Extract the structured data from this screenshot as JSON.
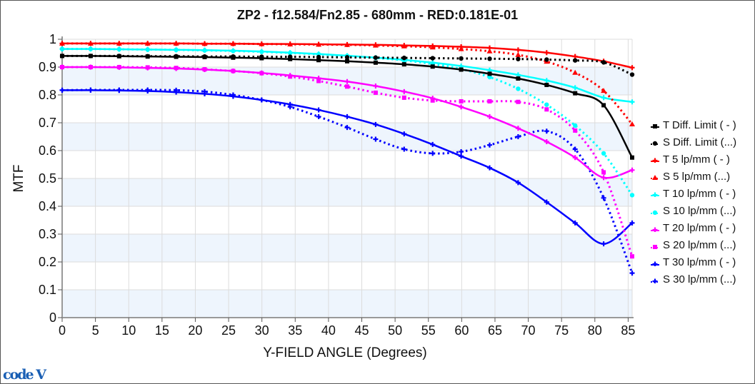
{
  "window": {
    "logo_text": "code V"
  },
  "chart_data": {
    "type": "line",
    "title": "ZP2 - f12.584/Fn2.85 - 680mm - RED:0.181E-01",
    "xlabel": "Y-FIELD ANGLE (Degrees)",
    "ylabel": "MTF",
    "xlim": [
      0,
      85.6
    ],
    "ylim": [
      0,
      1
    ],
    "xticks": [
      "0",
      "5",
      "10",
      "15",
      "20",
      "25",
      "30",
      "35",
      "40",
      "45",
      "50",
      "55",
      "60",
      "65",
      "70",
      "75",
      "80",
      "85"
    ],
    "yticks": [
      "0",
      "0.1",
      "0.2",
      "0.3",
      "0.4",
      "0.5",
      "0.6",
      "0.7",
      "0.8",
      "0.9",
      "1"
    ],
    "grid": true,
    "legend_position": "right",
    "x": [
      0,
      4.28,
      8.56,
      12.84,
      17.12,
      21.4,
      25.68,
      29.96,
      34.24,
      38.52,
      42.8,
      47.08,
      51.36,
      55.64,
      59.92,
      64.2,
      68.48,
      72.76,
      77.04,
      81.32,
      85.6
    ],
    "series": [
      {
        "name": "T Diff. Limit ( - )",
        "color": "#000000",
        "style": "solid",
        "marker": "square",
        "values": [
          0.94,
          0.94,
          0.939,
          0.938,
          0.937,
          0.936,
          0.934,
          0.932,
          0.929,
          0.925,
          0.921,
          0.916,
          0.91,
          0.902,
          0.891,
          0.876,
          0.859,
          0.836,
          0.806,
          0.763,
          0.575
        ]
      },
      {
        "name": "S Diff. Limit (...)",
        "color": "#000000",
        "style": "dotted",
        "marker": "circle",
        "values": [
          0.94,
          0.94,
          0.94,
          0.939,
          0.939,
          0.938,
          0.938,
          0.937,
          0.937,
          0.936,
          0.935,
          0.934,
          0.933,
          0.932,
          0.931,
          0.93,
          0.929,
          0.927,
          0.924,
          0.917,
          0.873
        ]
      },
      {
        "name": "T 5 lp/mm ( - )",
        "color": "#ff0000",
        "style": "solid",
        "marker": "plus",
        "values": [
          0.985,
          0.985,
          0.985,
          0.985,
          0.985,
          0.984,
          0.984,
          0.983,
          0.983,
          0.982,
          0.981,
          0.98,
          0.978,
          0.976,
          0.973,
          0.969,
          0.962,
          0.952,
          0.938,
          0.921,
          0.898
        ]
      },
      {
        "name": "S 5 lp/mm (...)",
        "color": "#ff0000",
        "style": "dotted",
        "marker": "triangle",
        "values": [
          0.985,
          0.985,
          0.985,
          0.985,
          0.985,
          0.984,
          0.984,
          0.983,
          0.982,
          0.981,
          0.98,
          0.978,
          0.975,
          0.971,
          0.965,
          0.957,
          0.944,
          0.92,
          0.88,
          0.815,
          0.695
        ]
      },
      {
        "name": "T 10 lp/mm ( - )",
        "color": "#00ffff",
        "style": "solid",
        "marker": "plus",
        "values": [
          0.965,
          0.965,
          0.964,
          0.963,
          0.962,
          0.961,
          0.959,
          0.956,
          0.952,
          0.947,
          0.941,
          0.934,
          0.926,
          0.916,
          0.904,
          0.889,
          0.872,
          0.852,
          0.826,
          0.79,
          0.775
        ]
      },
      {
        "name": "S 10 lp/mm (...)",
        "color": "#00ffff",
        "style": "dotted",
        "marker": "circle",
        "values": [
          0.965,
          0.965,
          0.964,
          0.963,
          0.962,
          0.96,
          0.958,
          0.955,
          0.951,
          0.946,
          0.94,
          0.933,
          0.924,
          0.911,
          0.893,
          0.864,
          0.822,
          0.765,
          0.69,
          0.59,
          0.44
        ]
      },
      {
        "name": "T 20 lp/mm ( - )",
        "color": "#ff00ff",
        "style": "solid",
        "marker": "plus",
        "values": [
          0.9,
          0.9,
          0.899,
          0.897,
          0.895,
          0.891,
          0.886,
          0.879,
          0.87,
          0.86,
          0.848,
          0.832,
          0.812,
          0.788,
          0.757,
          0.722,
          0.68,
          0.632,
          0.575,
          0.503,
          0.53
        ]
      },
      {
        "name": "S 20 lp/mm (...)",
        "color": "#ff00ff",
        "style": "dotted",
        "marker": "square",
        "values": [
          0.9,
          0.9,
          0.9,
          0.899,
          0.897,
          0.892,
          0.886,
          0.878,
          0.866,
          0.85,
          0.83,
          0.808,
          0.79,
          0.78,
          0.777,
          0.777,
          0.775,
          0.748,
          0.672,
          0.522,
          0.22
        ]
      },
      {
        "name": "T 30 lp/mm ( - )",
        "color": "#0000ff",
        "style": "solid",
        "marker": "plus",
        "values": [
          0.817,
          0.817,
          0.816,
          0.814,
          0.81,
          0.804,
          0.795,
          0.782,
          0.766,
          0.746,
          0.722,
          0.694,
          0.66,
          0.622,
          0.58,
          0.538,
          0.485,
          0.415,
          0.34,
          0.265,
          0.34
        ]
      },
      {
        "name": "S 30 lp/mm (...)",
        "color": "#0000ff",
        "style": "dotted",
        "marker": "plus",
        "values": [
          0.817,
          0.818,
          0.818,
          0.818,
          0.817,
          0.812,
          0.8,
          0.782,
          0.757,
          0.722,
          0.683,
          0.641,
          0.605,
          0.59,
          0.596,
          0.62,
          0.65,
          0.67,
          0.605,
          0.43,
          0.16
        ]
      }
    ]
  }
}
